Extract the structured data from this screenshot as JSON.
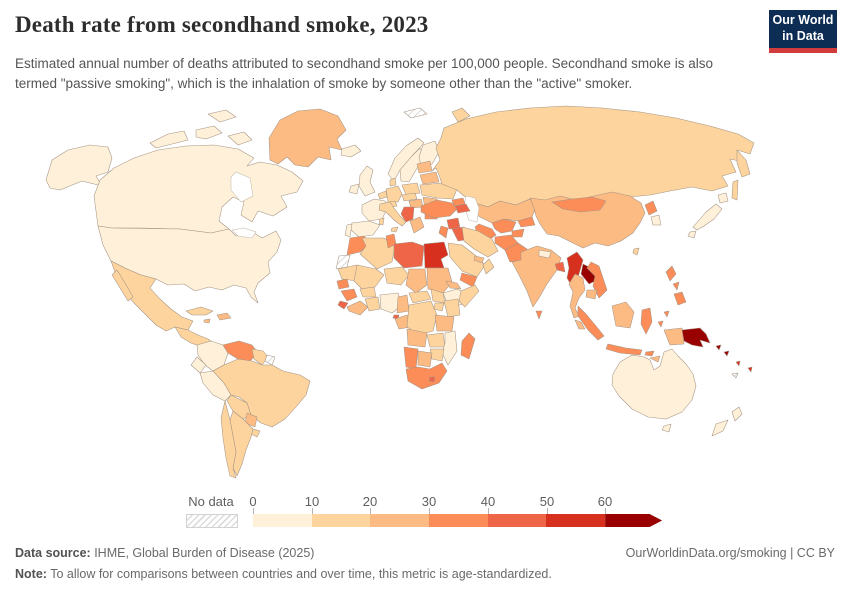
{
  "header": {
    "title": "Death rate from secondhand smoke, 2023",
    "subtitle": "Estimated annual number of deaths attributed to secondhand smoke per 100,000 people. Secondhand smoke is also termed \"passive smoking\", which is the inhalation of smoke by someone other than the \"active\" smoker.",
    "logo_line1": "Our World",
    "logo_line2": "in Data",
    "logo_colors": {
      "navy": "#0d2d54",
      "red": "#d23c3c"
    }
  },
  "legend": {
    "no_data_label": "No data",
    "ticks": [
      "0",
      "10",
      "20",
      "30",
      "40",
      "50",
      "60"
    ],
    "bucket_colors": [
      "#FEF0D9",
      "#FDD49E",
      "#FDBB84",
      "#FC8D59",
      "#EF6548",
      "#D7301F",
      "#990000"
    ],
    "bucket_ranges": [
      "0-10",
      "10-20",
      "20-30",
      "30-40",
      "40-50",
      "50-60",
      "60+"
    ]
  },
  "footer": {
    "data_source_label": "Data source:",
    "data_source_value": " IHME, Global Burden of Disease (2025)",
    "right": "OurWorldinData.org/smoking | CC BY",
    "note_label": "Note:",
    "note_value": " To allow for comparisons between countries and over time, this metric is age-standardized."
  },
  "chart_data": {
    "type": "choropleth",
    "basemap": "world",
    "title": "Death rate from secondhand smoke, 2023",
    "unit": "deaths per 100,000 people (age-standardized)",
    "legend_thresholds": [
      0,
      10,
      20,
      30,
      40,
      50,
      60
    ],
    "palette": [
      "#FEF0D9",
      "#FDD49E",
      "#FDBB84",
      "#FC8D59",
      "#EF6548",
      "#D7301F",
      "#990000"
    ],
    "no_data_countries": [
      "Western Sahara",
      "French Guiana",
      "Svalbard",
      "New Caledonia"
    ],
    "countries": [
      {
        "name": "United States",
        "range": "0-10"
      },
      {
        "name": "Canada",
        "range": "0-10"
      },
      {
        "name": "Australia",
        "range": "0-10"
      },
      {
        "name": "New Zealand",
        "range": "0-10"
      },
      {
        "name": "Japan",
        "range": "0-10"
      },
      {
        "name": "South Korea",
        "range": "0-10"
      },
      {
        "name": "United Kingdom",
        "range": "0-10"
      },
      {
        "name": "Ireland",
        "range": "0-10"
      },
      {
        "name": "France",
        "range": "0-10"
      },
      {
        "name": "Spain",
        "range": "0-10"
      },
      {
        "name": "Portugal",
        "range": "0-10"
      },
      {
        "name": "Norway",
        "range": "0-10"
      },
      {
        "name": "Sweden",
        "range": "0-10"
      },
      {
        "name": "Finland",
        "range": "0-10"
      },
      {
        "name": "Iceland",
        "range": "0-10"
      },
      {
        "name": "Colombia",
        "range": "0-10"
      },
      {
        "name": "Ecuador",
        "range": "0-10"
      },
      {
        "name": "Peru",
        "range": "0-10"
      },
      {
        "name": "Nigeria",
        "range": "0-10"
      },
      {
        "name": "Ethiopia",
        "range": "0-10"
      },
      {
        "name": "Mozambique",
        "range": "0-10"
      },
      {
        "name": "Nepal",
        "range": "0-10"
      },
      {
        "name": "Mexico",
        "range": "10-20"
      },
      {
        "name": "Brazil",
        "range": "10-20"
      },
      {
        "name": "Argentina",
        "range": "10-20"
      },
      {
        "name": "Chile",
        "range": "10-20"
      },
      {
        "name": "Bolivia",
        "range": "10-20"
      },
      {
        "name": "Cuba",
        "range": "10-20"
      },
      {
        "name": "Russia",
        "range": "10-20"
      },
      {
        "name": "Ukraine",
        "range": "10-20"
      },
      {
        "name": "Germany",
        "range": "10-20"
      },
      {
        "name": "Poland",
        "range": "10-20"
      },
      {
        "name": "Italy",
        "range": "10-20"
      },
      {
        "name": "Denmark",
        "range": "10-20"
      },
      {
        "name": "Algeria",
        "range": "10-20"
      },
      {
        "name": "Mauritania",
        "range": "10-20"
      },
      {
        "name": "Mali",
        "range": "10-20"
      },
      {
        "name": "Niger",
        "range": "10-20"
      },
      {
        "name": "Ghana",
        "range": "10-20"
      },
      {
        "name": "Democratic Republic of Congo",
        "range": "10-20"
      },
      {
        "name": "Kenya",
        "range": "10-20"
      },
      {
        "name": "Somalia",
        "range": "10-20"
      },
      {
        "name": "Zambia",
        "range": "10-20"
      },
      {
        "name": "Zimbabwe",
        "range": "10-20"
      },
      {
        "name": "Iran",
        "range": "10-20"
      },
      {
        "name": "Saudi Arabia",
        "range": "10-20"
      },
      {
        "name": "Oman",
        "range": "10-20"
      },
      {
        "name": "Taiwan",
        "range": "10-20"
      },
      {
        "name": "Greenland",
        "range": "20-30"
      },
      {
        "name": "Kazakhstan",
        "range": "20-30"
      },
      {
        "name": "China",
        "range": "20-30"
      },
      {
        "name": "India",
        "range": "20-30"
      },
      {
        "name": "Thailand",
        "range": "20-30"
      },
      {
        "name": "Cambodia",
        "range": "20-30"
      },
      {
        "name": "Malaysia",
        "range": "20-30"
      },
      {
        "name": "Hungary",
        "range": "20-30"
      },
      {
        "name": "Romania",
        "range": "20-30"
      },
      {
        "name": "Greece",
        "range": "20-30"
      },
      {
        "name": "Belarus",
        "range": "20-30"
      },
      {
        "name": "Paraguay",
        "range": "20-30"
      },
      {
        "name": "Haiti",
        "range": "20-30"
      },
      {
        "name": "Chad",
        "range": "20-30"
      },
      {
        "name": "Sudan",
        "range": "20-30"
      },
      {
        "name": "Tanzania",
        "range": "20-30"
      },
      {
        "name": "Angola",
        "range": "20-30"
      },
      {
        "name": "Botswana",
        "range": "20-30"
      },
      {
        "name": "Cameroon",
        "range": "20-30"
      },
      {
        "name": "Venezuela",
        "range": "30-40"
      },
      {
        "name": "Morocco",
        "range": "30-40"
      },
      {
        "name": "Tunisia",
        "range": "30-40"
      },
      {
        "name": "Turkey",
        "range": "30-40"
      },
      {
        "name": "Uzbekistan",
        "range": "30-40"
      },
      {
        "name": "Turkmenistan",
        "range": "30-40"
      },
      {
        "name": "Kyrgyzstan",
        "range": "30-40"
      },
      {
        "name": "Tajikistan",
        "range": "30-40"
      },
      {
        "name": "Georgia",
        "range": "30-40"
      },
      {
        "name": "Afghanistan",
        "range": "30-40"
      },
      {
        "name": "Pakistan",
        "range": "30-40"
      },
      {
        "name": "Yemen",
        "range": "30-40"
      },
      {
        "name": "North Korea",
        "range": "30-40"
      },
      {
        "name": "Vietnam",
        "range": "30-40"
      },
      {
        "name": "Philippines",
        "range": "30-40"
      },
      {
        "name": "Indonesia",
        "range": "30-40"
      },
      {
        "name": "Mongolia",
        "range": "30-40"
      },
      {
        "name": "South Africa",
        "range": "30-40"
      },
      {
        "name": "Namibia",
        "range": "30-40"
      },
      {
        "name": "Madagascar",
        "range": "30-40"
      },
      {
        "name": "Senegal",
        "range": "30-40"
      },
      {
        "name": "Guinea",
        "range": "30-40"
      },
      {
        "name": "Sri Lanka",
        "range": "30-40"
      },
      {
        "name": "Bulgaria",
        "range": "30-40"
      },
      {
        "name": "Libya",
        "range": "40-50"
      },
      {
        "name": "Syria",
        "range": "40-50"
      },
      {
        "name": "Iraq",
        "range": "40-50"
      },
      {
        "name": "Azerbaijan",
        "range": "40-50"
      },
      {
        "name": "Armenia",
        "range": "40-50"
      },
      {
        "name": "Bangladesh",
        "range": "40-50"
      },
      {
        "name": "Serbia",
        "range": "40-50"
      },
      {
        "name": "Bosnia and Herzegovina",
        "range": "40-50"
      },
      {
        "name": "Sierra Leone",
        "range": "40-50"
      },
      {
        "name": "Lesotho",
        "range": "40-50"
      },
      {
        "name": "Equatorial Guinea",
        "range": "40-50"
      },
      {
        "name": "Egypt",
        "range": "50-60"
      },
      {
        "name": "Myanmar",
        "range": "50-60"
      },
      {
        "name": "Fiji",
        "range": "50-60"
      },
      {
        "name": "Laos",
        "range": "60+"
      },
      {
        "name": "Papua New Guinea",
        "range": "60+"
      },
      {
        "name": "Solomon Islands",
        "range": "60+"
      }
    ]
  }
}
